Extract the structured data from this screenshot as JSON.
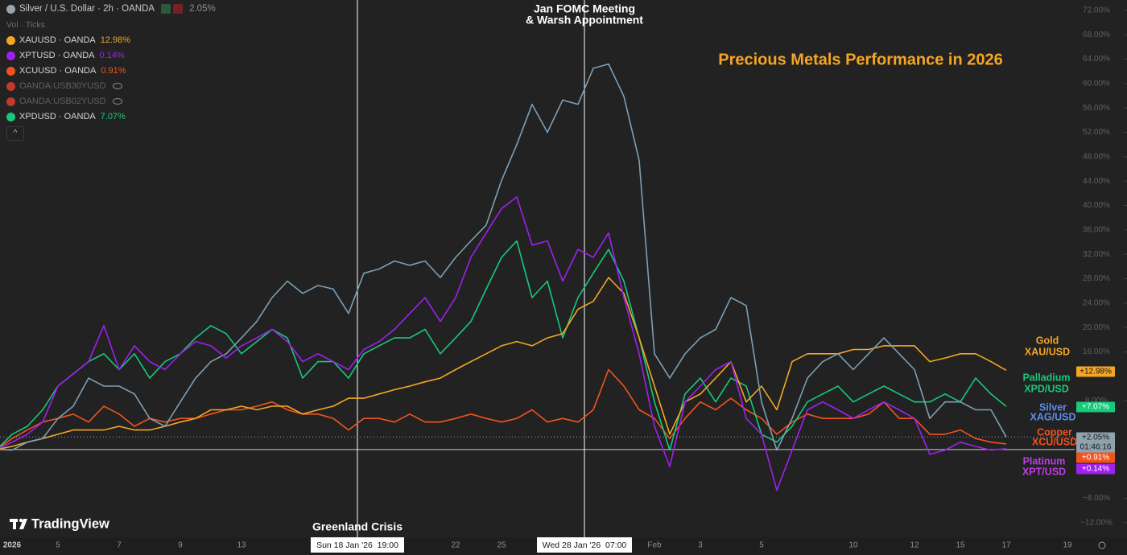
{
  "chart_data": {
    "type": "line",
    "title": "Precious Metals Performance in 2026",
    "vol_label": "Vol · Ticks",
    "hidden_legend": [
      "OANDA:USB30YUSD",
      "OANDA:USB02YUSD"
    ],
    "categories": [
      null,
      "2026",
      null,
      null,
      "5",
      null,
      null,
      null,
      "7",
      null,
      null,
      null,
      "9",
      null,
      null,
      null,
      "13",
      null,
      null,
      null,
      null,
      null,
      null,
      null,
      null,
      null,
      null,
      null,
      null,
      null,
      "22",
      null,
      null,
      "25",
      null,
      null,
      null,
      null,
      null,
      null,
      null,
      null,
      null,
      "Feb",
      null,
      null,
      "3",
      null,
      null,
      null,
      "5",
      null,
      null,
      null,
      null,
      null,
      "10",
      null,
      null,
      null,
      "12",
      null,
      null,
      "15",
      null,
      null,
      "17",
      null,
      null,
      null,
      "19"
    ],
    "ylim": [
      -17.3,
      73.7
    ],
    "yticks": [
      {
        "value": 72,
        "label": "72.00%"
      },
      {
        "value": 68,
        "label": "68.00%"
      },
      {
        "value": 64,
        "label": "64.00%"
      },
      {
        "value": 60,
        "label": "60.00%"
      },
      {
        "value": 56,
        "label": "56.00%"
      },
      {
        "value": 52,
        "label": "52.00%"
      },
      {
        "value": 48,
        "label": "48.00%"
      },
      {
        "value": 44,
        "label": "44.00%"
      },
      {
        "value": 40,
        "label": "40.00%"
      },
      {
        "value": 36,
        "label": "36.00%"
      },
      {
        "value": 32,
        "label": "32.00%"
      },
      {
        "value": 28,
        "label": "28.00%"
      },
      {
        "value": 24,
        "label": "24.00%"
      },
      {
        "value": 20,
        "label": "20.00%"
      },
      {
        "value": 16,
        "label": "16.00%"
      },
      {
        "value": 8,
        "label": "8.00%"
      },
      {
        "value": -8,
        "label": "−8.00%"
      },
      {
        "value": -12,
        "label": "−12.00%"
      }
    ],
    "annotations": [
      {
        "text": [
          "Jan FOMC Meeting",
          "& Warsh Appointment"
        ],
        "date": "Wed 28 Jan '26  07:00"
      },
      {
        "text": [
          "Greenland Crisis"
        ],
        "date": "Sun 18 Jan '26  19:00"
      }
    ],
    "series": [
      {
        "name": "Silver / U.S. Dollar · 2h · OANDA",
        "change_label": "2.05%",
        "tag": "+2.05%",
        "countdown": "01:46:16",
        "label": [
          "Silver",
          "XAG/USD"
        ],
        "color": "#7d9fb5",
        "label_color": "#5b8def",
        "values": [
          0,
          -0.1,
          1.2,
          1.8,
          5.1,
          7.1,
          11.7,
          10.4,
          10.4,
          9.1,
          5.1,
          3.8,
          7.8,
          11.7,
          14.4,
          15.7,
          18.3,
          21.0,
          24.9,
          27.6,
          25.6,
          26.9,
          26.3,
          22.3,
          28.9,
          29.6,
          30.9,
          30.2,
          30.9,
          28.2,
          31.5,
          34.2,
          36.8,
          44.1,
          50.0,
          56.6,
          52.0,
          57.3,
          56.6,
          62.5,
          63.2,
          57.9,
          47.4,
          15.7,
          11.7,
          15.7,
          18.3,
          19.7,
          24.9,
          23.6,
          7.8,
          -0.1,
          5.1,
          11.7,
          14.4,
          15.7,
          13.1,
          15.7,
          18.3,
          15.7,
          13.1,
          5.1,
          7.8,
          7.8,
          6.5,
          6.5,
          2.05,
          null,
          null,
          null,
          null
        ]
      },
      {
        "name": "XAUUSD · OANDA",
        "change_label": "12.98%",
        "tag": "+12.98%",
        "label": [
          "Gold",
          "XAU/USD"
        ],
        "color": "#f5a623",
        "label_color": "#f5a623",
        "values": [
          0,
          0.5,
          1.2,
          1.8,
          2.5,
          3.2,
          3.2,
          3.2,
          3.8,
          3.2,
          3.2,
          3.8,
          4.5,
          5.1,
          6.5,
          6.5,
          7.1,
          6.5,
          7.1,
          7.1,
          5.8,
          6.5,
          7.1,
          8.4,
          8.4,
          9.1,
          9.8,
          10.4,
          11.1,
          11.7,
          13.1,
          14.4,
          15.7,
          17.0,
          17.7,
          17.0,
          18.3,
          19.0,
          23.0,
          24.3,
          28.2,
          25.6,
          18.3,
          10.4,
          2.5,
          7.8,
          9.1,
          11.7,
          14.4,
          7.8,
          10.4,
          6.5,
          14.4,
          15.7,
          15.7,
          15.7,
          16.4,
          16.4,
          17.0,
          17.0,
          17.0,
          14.4,
          15.0,
          15.7,
          15.7,
          14.4,
          12.98,
          null,
          null,
          null,
          null
        ]
      },
      {
        "name": "XPTUSD · OANDA",
        "change_label": "0.14%",
        "tag": "+0.14%",
        "label": [
          "Platinum",
          "XPT/USD"
        ],
        "color": "#a020f0",
        "label_color": "#c23be8",
        "values": [
          0,
          1.2,
          2.5,
          4.5,
          10.4,
          12.4,
          14.4,
          20.3,
          13.1,
          17.0,
          14.4,
          13.1,
          15.7,
          17.7,
          17.0,
          15.0,
          17.0,
          18.3,
          19.7,
          17.7,
          14.4,
          15.7,
          14.4,
          13.1,
          16.4,
          17.7,
          19.7,
          22.3,
          24.9,
          21.0,
          24.9,
          31.5,
          35.5,
          39.5,
          41.4,
          33.5,
          34.2,
          27.6,
          32.8,
          31.5,
          35.5,
          24.9,
          15.7,
          3.8,
          -2.8,
          7.8,
          10.4,
          13.1,
          14.4,
          5.1,
          2.5,
          -6.7,
          -0.1,
          6.5,
          7.8,
          6.5,
          5.1,
          6.5,
          7.8,
          6.5,
          5.1,
          -0.8,
          -0.1,
          1.2,
          0.5,
          -0.1,
          0.14,
          null,
          null,
          null,
          null
        ]
      },
      {
        "name": "XCUUSD · OANDA",
        "change_label": "0.91%",
        "tag": "+0.91%",
        "label": [
          "Copper",
          "XCU/USD"
        ],
        "color": "#f0541e",
        "label_color": "#f0541e",
        "values": [
          0,
          1.8,
          3.2,
          4.5,
          5.1,
          5.8,
          4.5,
          7.1,
          5.8,
          3.8,
          5.1,
          4.5,
          5.1,
          5.1,
          5.8,
          6.5,
          6.5,
          7.1,
          7.8,
          6.5,
          5.8,
          5.8,
          5.1,
          3.2,
          5.1,
          5.1,
          4.5,
          5.8,
          4.5,
          4.5,
          5.1,
          5.8,
          5.1,
          4.5,
          5.1,
          6.5,
          4.5,
          5.1,
          4.5,
          6.5,
          13.1,
          10.4,
          6.5,
          5.1,
          1.8,
          5.1,
          7.8,
          6.5,
          8.4,
          6.5,
          5.1,
          2.5,
          4.5,
          5.8,
          5.1,
          5.1,
          5.1,
          5.8,
          7.8,
          5.1,
          5.1,
          2.5,
          2.5,
          3.2,
          1.8,
          1.2,
          0.91,
          null,
          null,
          null,
          null
        ]
      },
      {
        "name": "XPDUSD · OANDA",
        "change_label": "7.07%",
        "tag": "+7.07%",
        "label": [
          "Palladium",
          "XPD/USD"
        ],
        "color": "#17c97a",
        "label_color": "#17c97a",
        "values": [
          0,
          2.5,
          3.8,
          6.5,
          10.4,
          12.4,
          14.4,
          15.7,
          13.1,
          15.7,
          11.7,
          14.4,
          15.7,
          18.3,
          20.3,
          19.0,
          15.7,
          17.7,
          19.7,
          18.3,
          11.7,
          14.4,
          14.4,
          11.7,
          15.7,
          17.0,
          18.3,
          18.3,
          19.7,
          15.7,
          18.3,
          21.0,
          26.3,
          31.5,
          34.2,
          24.9,
          27.6,
          18.3,
          24.9,
          28.9,
          32.8,
          27.6,
          18.3,
          7.8,
          -0.1,
          9.1,
          11.7,
          7.8,
          11.7,
          10.4,
          2.5,
          1.2,
          3.8,
          7.8,
          9.1,
          10.4,
          7.8,
          9.1,
          10.4,
          9.1,
          7.8,
          7.8,
          9.1,
          7.8,
          11.7,
          9.1,
          7.07,
          null,
          null,
          null,
          null
        ]
      }
    ]
  },
  "logo": "TradingView"
}
